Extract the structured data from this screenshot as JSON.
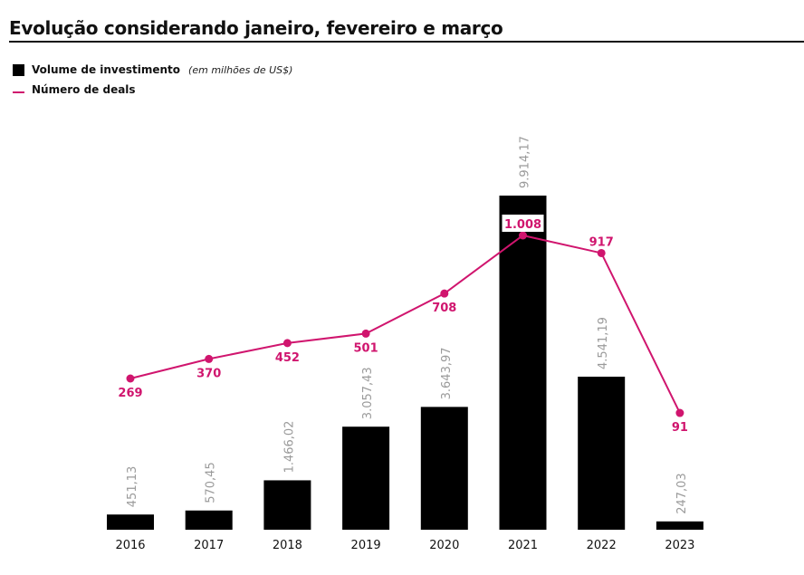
{
  "title": "Evolução considerando janeiro, fevereiro e março",
  "legend": {
    "bars_label": "Volume de investimento",
    "bars_note": "(em milhões de US$)",
    "line_label": "Número de deals"
  },
  "colors": {
    "bar": "#000000",
    "line": "#d0156e",
    "bar_label": "#9a9a9a",
    "axis_text": "#111111"
  },
  "chart_data": {
    "type": "bar+line",
    "title": "Evolução considerando janeiro, fevereiro e março",
    "categories": [
      "2016",
      "2017",
      "2018",
      "2019",
      "2020",
      "2021",
      "2022",
      "2023"
    ],
    "series": [
      {
        "name": "Volume de investimento",
        "unit": "em milhões de US$",
        "type": "bar",
        "values": [
          451.13,
          570.45,
          1466.02,
          3057.43,
          3643.97,
          9914.17,
          4541.19,
          247.03
        ],
        "labels": [
          "451,13",
          "570,45",
          "1.466,02",
          "3.057,43",
          "3.643,97",
          "9.914,17",
          "4.541,19",
          "247,03"
        ]
      },
      {
        "name": "Número de deals",
        "type": "line",
        "values": [
          269,
          370,
          452,
          501,
          708,
          1008,
          917,
          91
        ],
        "labels": [
          "269",
          "370",
          "452",
          "501",
          "708",
          "1.008",
          "917",
          "91"
        ]
      }
    ],
    "xlabel": "",
    "ylabel": "",
    "grid": false,
    "legend_position": "top-left"
  }
}
